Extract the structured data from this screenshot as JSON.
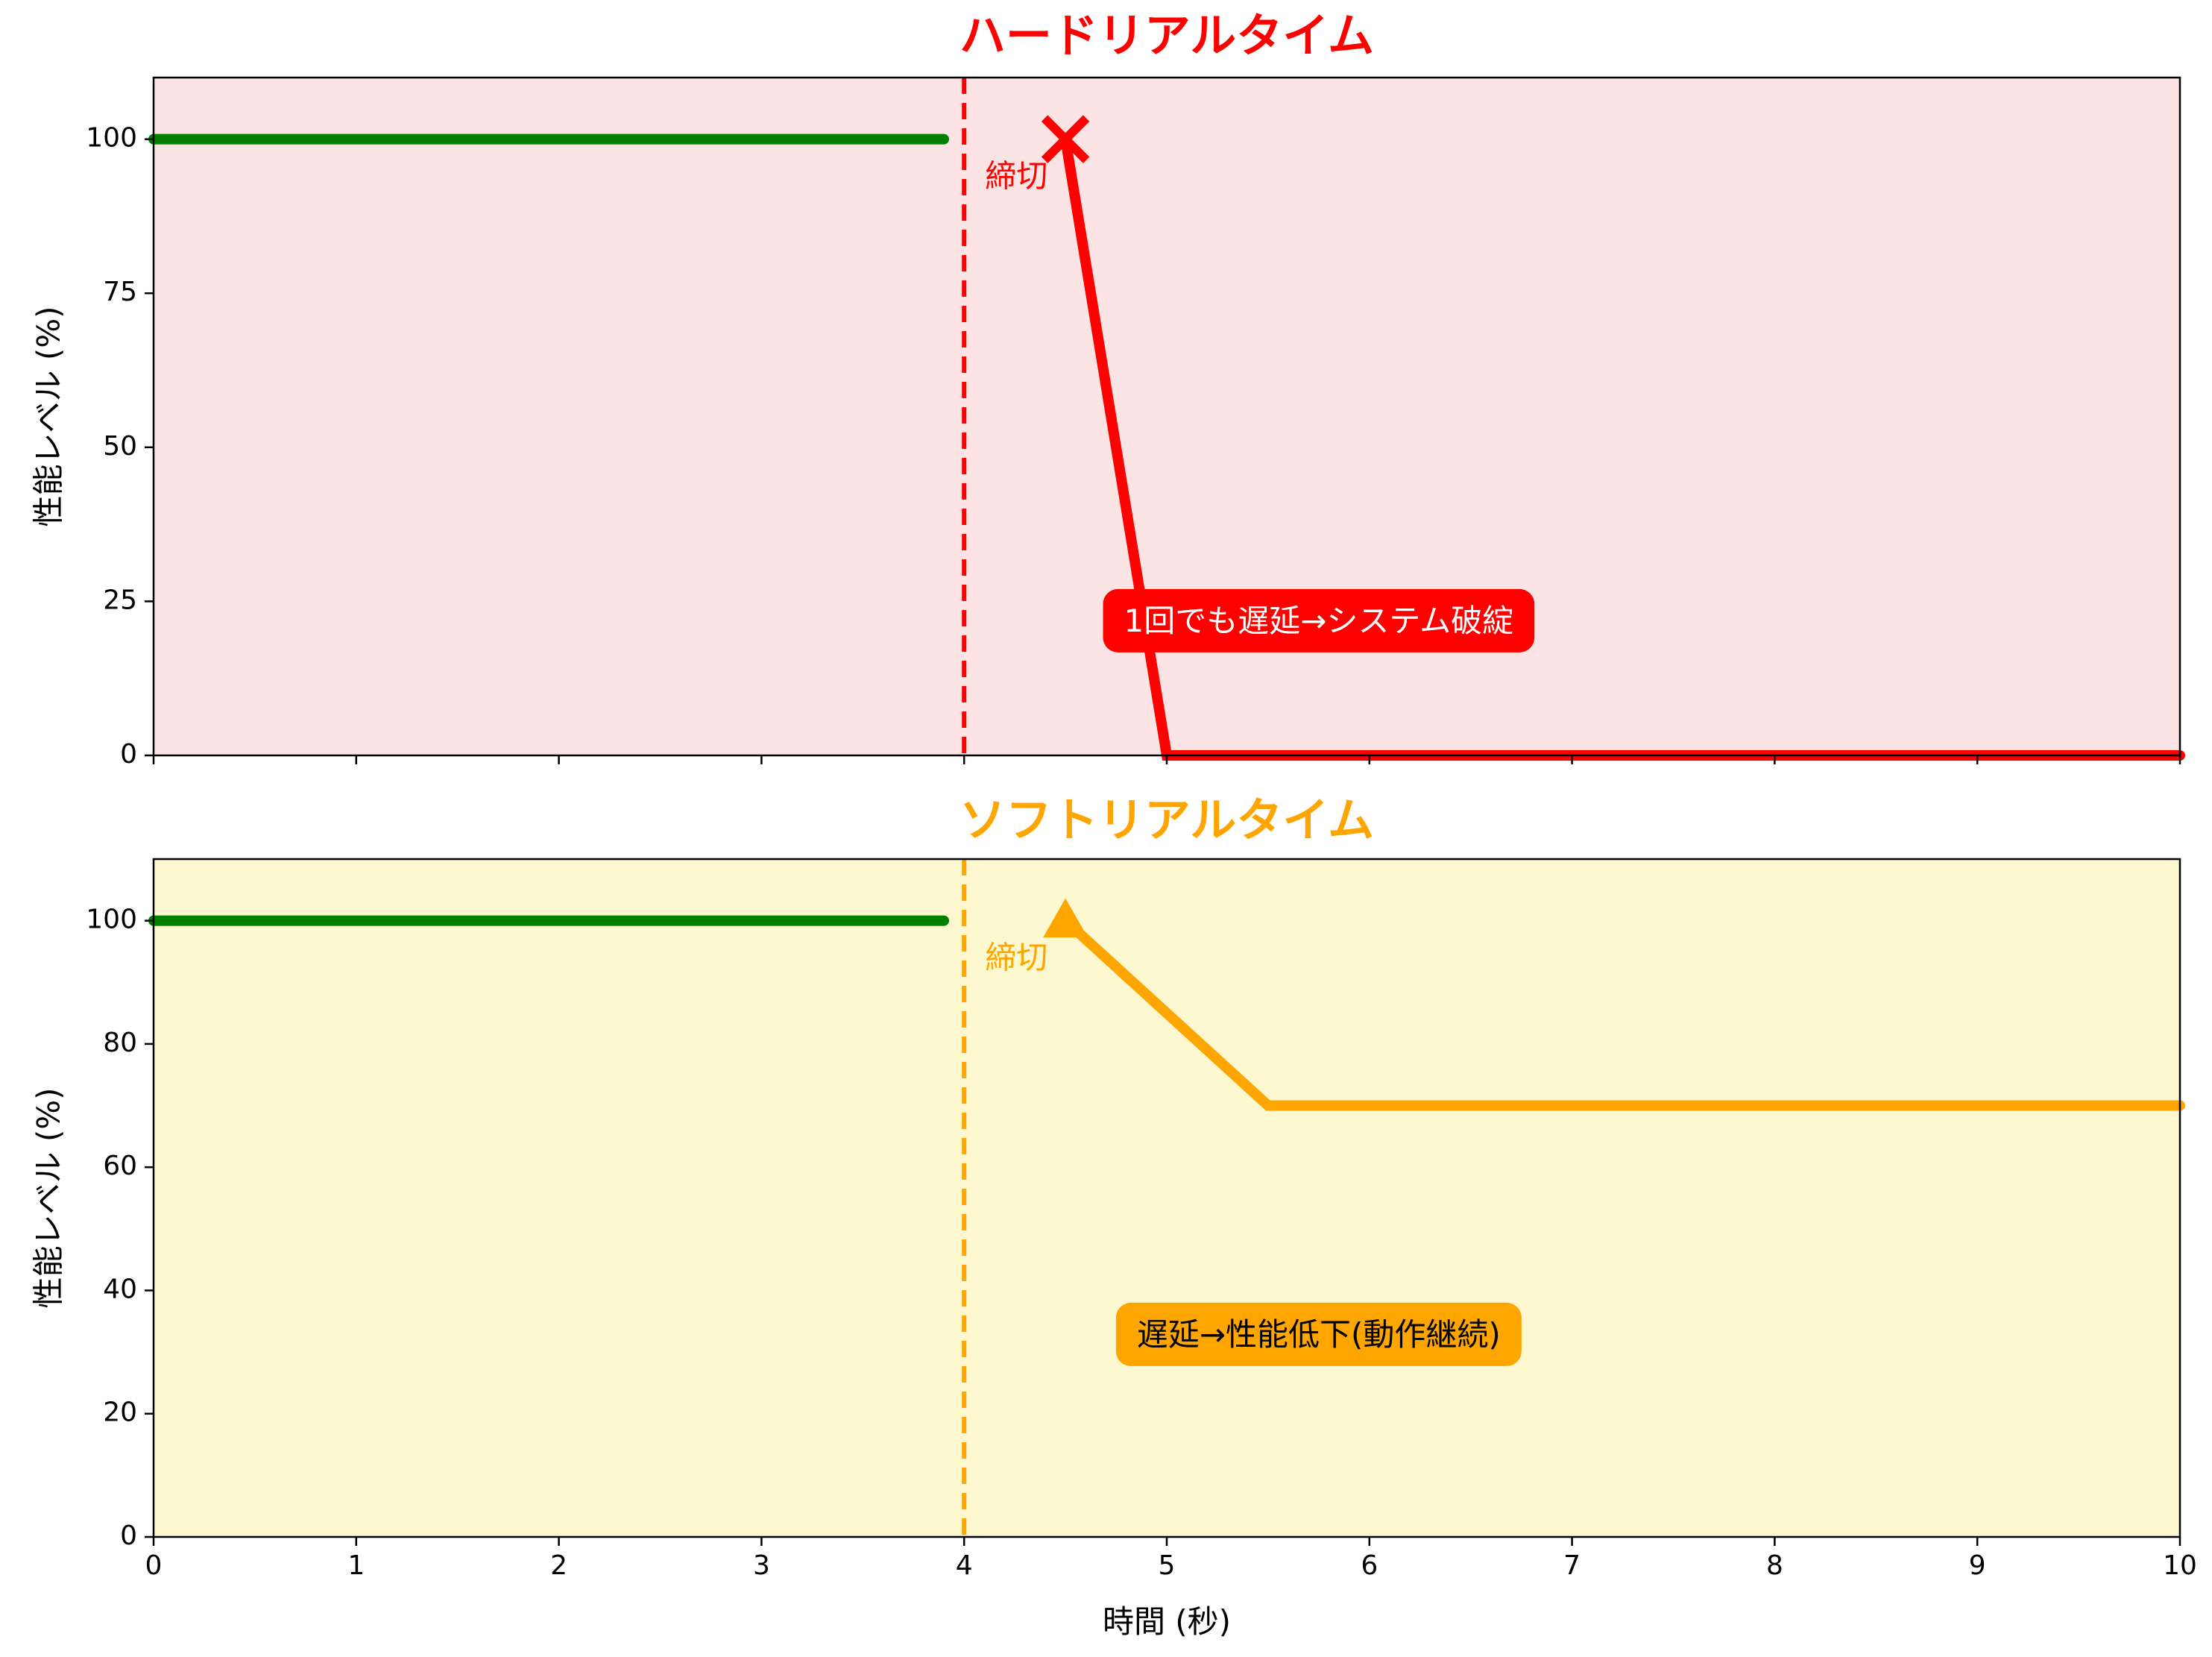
{
  "chart_data": [
    {
      "type": "line",
      "title": "ハードリアルタイム",
      "title_color": "#ff0000",
      "background": "#fde4e4",
      "ylabel": "性能レベル (%)",
      "xlabel": "",
      "xlim": [
        0,
        10
      ],
      "ylim": [
        0,
        110
      ],
      "yticks": [
        0,
        25,
        50,
        75,
        100
      ],
      "xticks": [
        0,
        1,
        2,
        3,
        4,
        5,
        6,
        7,
        8,
        9,
        10
      ],
      "show_xtick_labels": false,
      "deadline": {
        "x": 4,
        "label": "締切",
        "color": "#ff0000"
      },
      "series": [
        {
          "color": "#008000",
          "x": [
            0,
            3.9
          ],
          "y": [
            100,
            100
          ]
        },
        {
          "color": "#ff0000",
          "x": [
            4.5,
            5.0,
            10
          ],
          "y": [
            100,
            0,
            0
          ]
        }
      ],
      "marker": {
        "shape": "x",
        "x": 4.5,
        "y": 100,
        "color": "#ff0000"
      },
      "annotation": {
        "text": "1回でも遅延→システム破綻",
        "x": 5.75,
        "y": 21.5,
        "bg": "#ff0000",
        "color": "#ffffff"
      }
    },
    {
      "type": "line",
      "title": "ソフトリアルタイム",
      "title_color": "#ffa500",
      "background": "#fdf8d0",
      "ylabel": "性能レベル (%)",
      "xlabel": "時間 (秒)",
      "xlim": [
        0,
        10
      ],
      "ylim": [
        0,
        110
      ],
      "yticks": [
        0,
        20,
        40,
        60,
        80,
        100
      ],
      "xticks": [
        0,
        1,
        2,
        3,
        4,
        5,
        6,
        7,
        8,
        9,
        10
      ],
      "show_xtick_labels": true,
      "deadline": {
        "x": 4,
        "label": "締切",
        "color": "#ffa500"
      },
      "series": [
        {
          "color": "#008000",
          "x": [
            0,
            3.9
          ],
          "y": [
            100,
            100
          ]
        },
        {
          "color": "#ffa500",
          "x": [
            4.5,
            5.5,
            10
          ],
          "y": [
            100,
            70,
            70
          ]
        }
      ],
      "marker": {
        "shape": "triangle",
        "x": 4.5,
        "y": 100,
        "color": "#ffa500"
      },
      "annotation": {
        "text": "遅延→性能低下(動作継続)",
        "x": 5.75,
        "y": 32.5,
        "bg": "#ffa500",
        "color": "#000000"
      }
    }
  ]
}
